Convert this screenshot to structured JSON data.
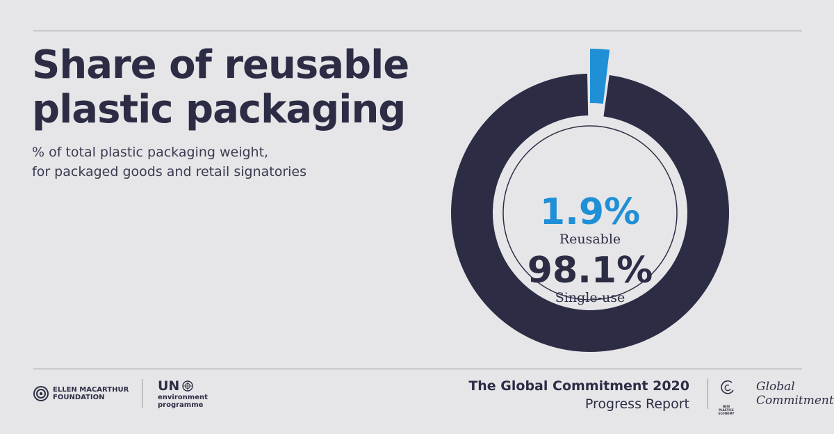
{
  "chart_data": {
    "type": "pie",
    "title": "Share of reusable\nplastic packaging",
    "subtitle": "% of total plastic packaging weight,\nfor packaged goods and retail signatories",
    "slices": [
      {
        "label": "Reusable",
        "value": 1.9,
        "value_label": "1.9%",
        "color": "#1f8fd6"
      },
      {
        "label": "Single-use",
        "value": 98.1,
        "value_label": "98.1%",
        "color": "#2c2d45"
      }
    ]
  },
  "footer": {
    "emf_name": "ELLEN MACARTHUR\nFOUNDATION",
    "un_word": "UN",
    "un_sub": "environment\nprogramme",
    "report_title": "The Global Commitment 2020",
    "report_subtitle": "Progress Report",
    "npe_text": "NEW\nPLASTICS\nECONOMY",
    "gc_script": "Global\nCommitment"
  },
  "colors": {
    "background": "#e6e6e8",
    "navy": "#2c2d45",
    "accent_blue": "#1f8fd6",
    "rule": "#8f8f99"
  }
}
